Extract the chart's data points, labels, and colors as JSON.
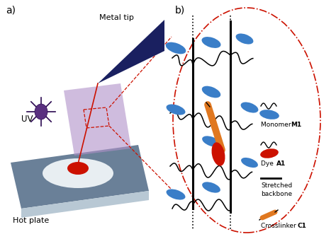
{
  "bg_color": "#ffffff",
  "label_a": "a)",
  "label_b": "b)",
  "metal_tip_label": "Metal tip",
  "uv_label": "UV",
  "hot_plate_label": "Hot plate",
  "blue_color": "#3a7ec8",
  "red_color": "#cc1100",
  "orange_color": "#e07820",
  "purple_color": "#5a3080",
  "dark_blue": "#1a2060",
  "gray_plate": "#6a8098",
  "light_gray": "#b8c8d4",
  "pink_purple": "#b090c8"
}
